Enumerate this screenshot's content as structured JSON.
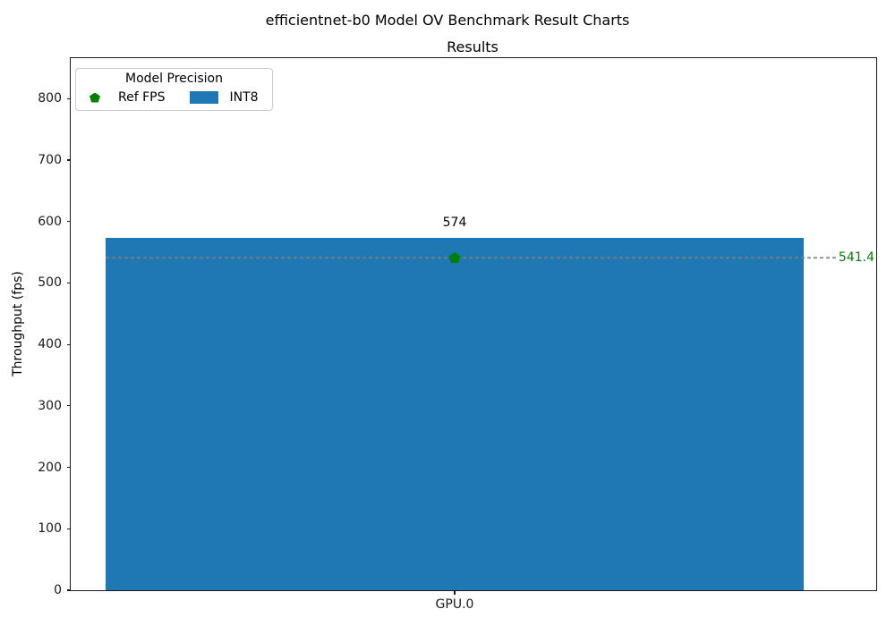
{
  "figure_title": "efficientnet-b0 Model OV Benchmark Result Charts",
  "chart_data": {
    "type": "bar",
    "title": "Results",
    "xlabel": "",
    "ylabel": "Throughput (fps)",
    "categories": [
      "GPU.0"
    ],
    "series": [
      {
        "name": "INT8",
        "values": [
          574
        ],
        "color": "#1f77b4"
      }
    ],
    "bar_labels": [
      "574"
    ],
    "ref_line": {
      "name": "Ref FPS",
      "value": 541.4,
      "label": "541.4",
      "marker": "pentagon",
      "marker_color": "#008000",
      "line_color": "#7f7f7f",
      "line_style": "dashed",
      "label_color": "#008000"
    },
    "ylim": [
      0,
      866
    ],
    "yticks": [
      0,
      100,
      200,
      300,
      400,
      500,
      600,
      700,
      800
    ],
    "grid": false,
    "legend": {
      "title": "Model Precision",
      "position": "upper-left",
      "items": [
        {
          "label": "Ref FPS",
          "marker": "pentagon",
          "color": "#008000"
        },
        {
          "label": "INT8",
          "marker": "square",
          "color": "#1f77b4"
        }
      ]
    }
  }
}
